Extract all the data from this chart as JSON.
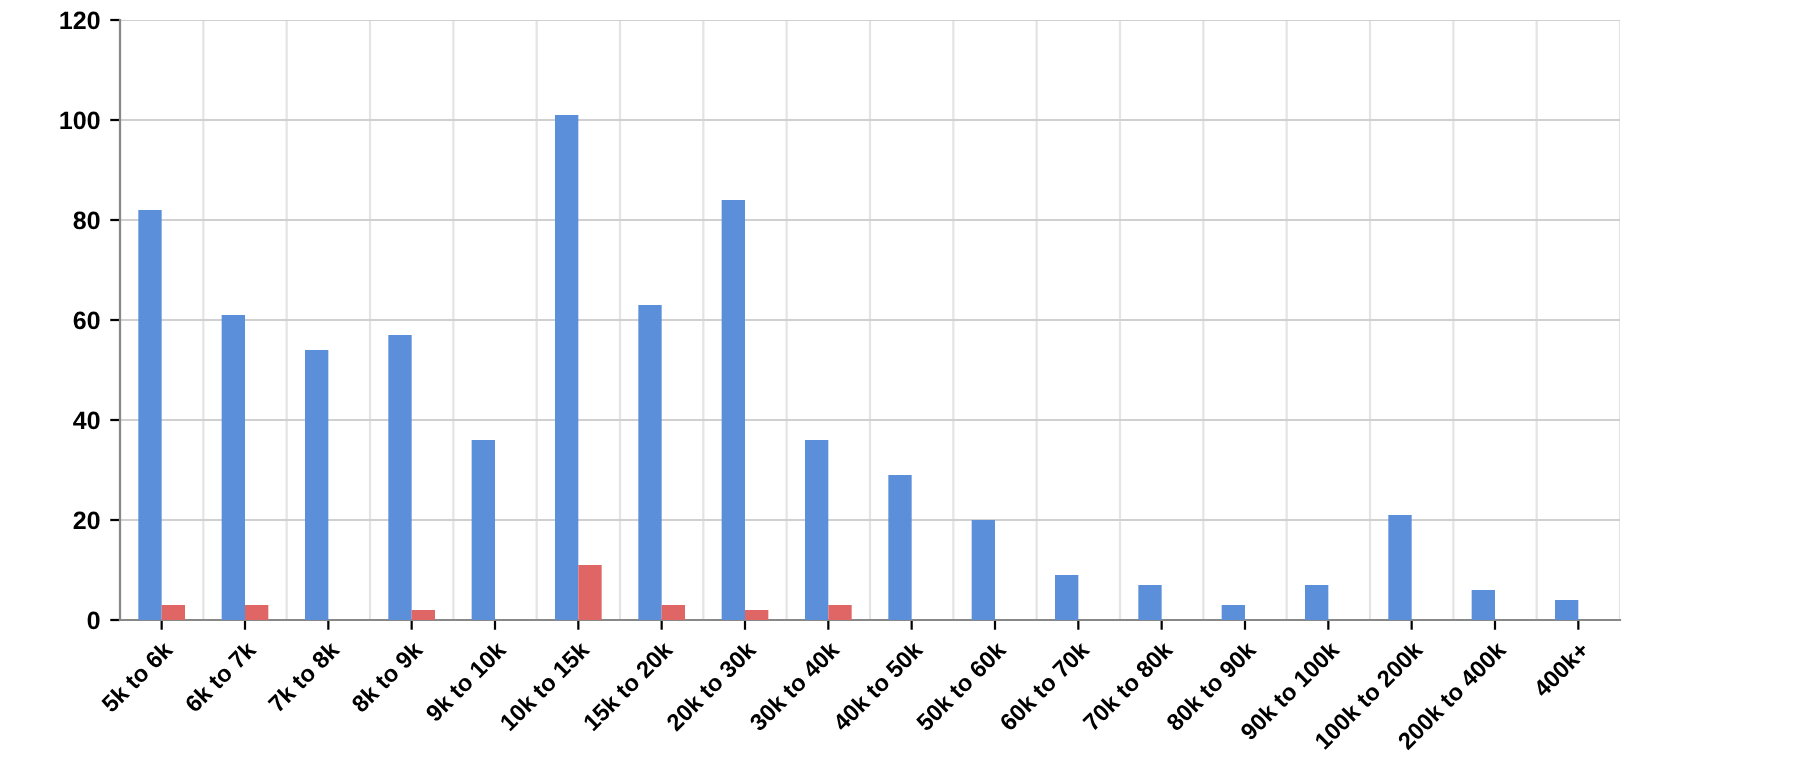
{
  "chart_data": {
    "type": "bar",
    "categories": [
      "5k to 6k",
      "6k to 7k",
      "7k to 8k",
      "8k to 9k",
      "9k to 10k",
      "10k to 15k",
      "15k to 20k",
      "20k to 30k",
      "30k to 40k",
      "40k to 50k",
      "50k to 60k",
      "60k to 70k",
      "70k to 80k",
      "80k to 90k",
      "90k to 100k",
      "100k to 200k",
      "200k to 400k",
      "400k+"
    ],
    "series": [
      {
        "color": "#5b8fd9",
        "values": [
          82,
          61,
          54,
          57,
          36,
          101,
          63,
          84,
          36,
          29,
          20,
          9,
          7,
          3,
          7,
          21,
          6,
          4
        ]
      },
      {
        "color": "#e06666",
        "values": [
          3,
          3,
          0,
          2,
          0,
          11,
          3,
          2,
          3,
          0,
          0,
          0,
          0,
          0,
          0,
          0,
          0,
          0
        ]
      }
    ],
    "ylim": [
      0,
      120
    ],
    "yticks": [
      0,
      20,
      40,
      60,
      80,
      100,
      120
    ],
    "grid": true
  }
}
